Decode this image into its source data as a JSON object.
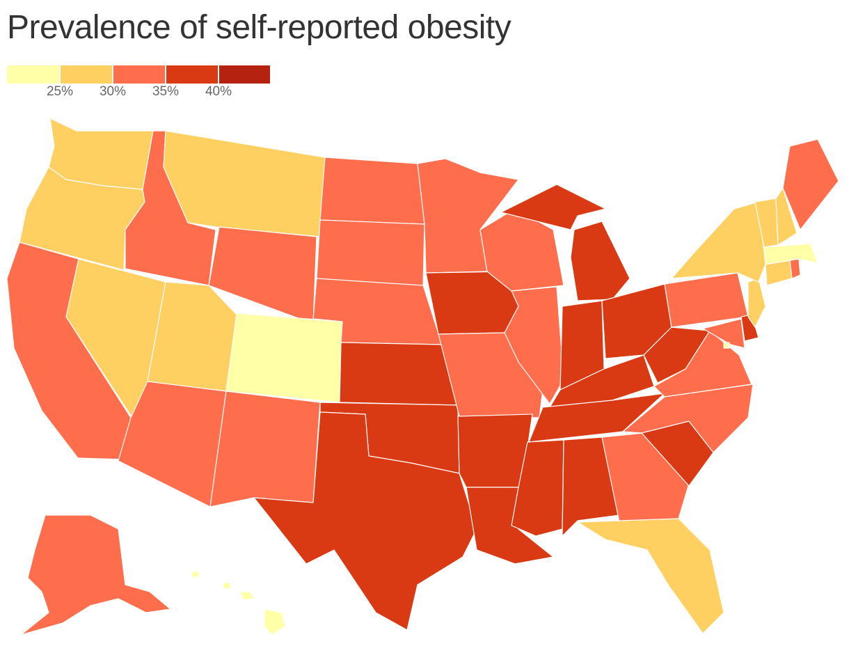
{
  "title": "Prevalence of self-reported obesity",
  "legend": {
    "colors": [
      "#ffffa8",
      "#fed062",
      "#fe6d4c",
      "#d93a14",
      "#b52210"
    ],
    "ticks": [
      "25%",
      "30%",
      "35%",
      "40%"
    ]
  },
  "map_data": {
    "type": "choropleth",
    "region": "United States",
    "bins": [
      {
        "range": "< 25%",
        "color": "#ffffa8"
      },
      {
        "range": "25%–30%",
        "color": "#fed062"
      },
      {
        "range": "30%–35%",
        "color": "#fe6d4c"
      },
      {
        "range": "35%–40%",
        "color": "#d93a14"
      },
      {
        "range": "> 40%",
        "color": "#b52210"
      }
    ],
    "states": {
      "WA": 1,
      "OR": 1,
      "CA": 2,
      "NV": 1,
      "ID": 2,
      "MT": 1,
      "WY": 2,
      "UT": 1,
      "CO": 0,
      "AZ": 2,
      "NM": 2,
      "ND": 2,
      "SD": 2,
      "NE": 2,
      "KS": 3,
      "OK": 3,
      "TX": 3,
      "MN": 2,
      "IA": 3,
      "MO": 2,
      "AR": 3,
      "LA": 3,
      "WI": 2,
      "IL": 2,
      "MI": 3,
      "IN": 3,
      "OH": 3,
      "KY": 3,
      "TN": 3,
      "MS": 3,
      "AL": 3,
      "GA": 2,
      "FL": 1,
      "SC": 3,
      "NC": 2,
      "VA": 2,
      "WV": 3,
      "PA": 2,
      "NY": 1,
      "VT": 1,
      "NH": 1,
      "ME": 2,
      "MA": 0,
      "CT": 1,
      "RI": 2,
      "NJ": 1,
      "DE": 3,
      "MD": 2,
      "DC": 0,
      "AK": 2,
      "HI": 0
    }
  }
}
